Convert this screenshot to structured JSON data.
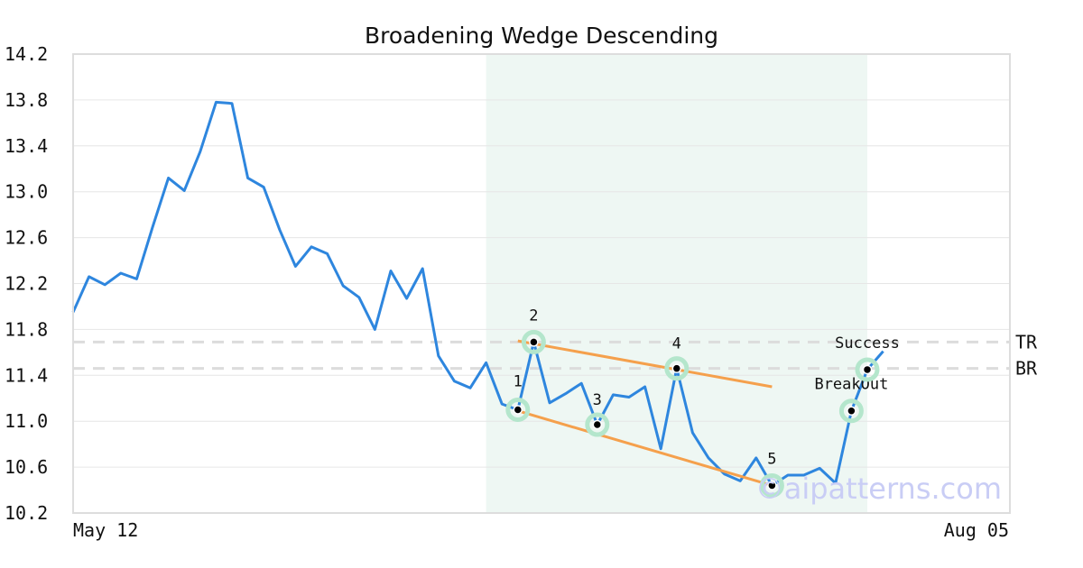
{
  "chart_data": {
    "type": "line",
    "title": "Broadening Wedge Descending",
    "xlabel": "",
    "ylabel": "",
    "x_start_label": "May 12",
    "x_end_label": "Aug 05",
    "ylim": [
      10.2,
      14.2
    ],
    "yticks": [
      "14.2",
      "13.8",
      "13.4",
      "13.0",
      "12.6",
      "12.2",
      "11.8",
      "11.4",
      "11.0",
      "10.6",
      "10.2"
    ],
    "grid": true,
    "series": [
      {
        "values": [
          11.95,
          12.26,
          12.19,
          12.29,
          12.24,
          12.69,
          13.12,
          13.01,
          13.35,
          13.78,
          13.77,
          13.12,
          13.04,
          12.67,
          12.35,
          12.52,
          12.46,
          12.18,
          12.08,
          11.8,
          12.31,
          12.07,
          12.33,
          11.57,
          11.35,
          11.29,
          11.51,
          11.15,
          11.1,
          11.69,
          11.16,
          11.24,
          11.33,
          10.97,
          11.23,
          11.21,
          11.3,
          10.76,
          11.46,
          10.9,
          10.68,
          10.54,
          10.48,
          10.68,
          10.44,
          10.53,
          10.53,
          10.59,
          10.46,
          11.09,
          11.45,
          11.61
        ]
      }
    ],
    "pattern_region": {
      "start_index": 26,
      "end_index": 50,
      "color": "#eef7f3"
    },
    "upper_trendline": {
      "start": [
        28,
        11.7
      ],
      "end": [
        44,
        11.3
      ],
      "color": "#f5a04c"
    },
    "lower_trendline": {
      "start": [
        28,
        11.09
      ],
      "end": [
        44,
        10.44
      ],
      "color": "#f5a04c"
    },
    "levels": [
      {
        "label": "TR",
        "value": 11.69
      },
      {
        "label": "BR",
        "value": 11.46
      }
    ],
    "points": [
      {
        "label": "1",
        "index": 28,
        "value": 11.1
      },
      {
        "label": "2",
        "index": 29,
        "value": 11.69
      },
      {
        "label": "3",
        "index": 33,
        "value": 10.97
      },
      {
        "label": "4",
        "index": 38,
        "value": 11.46
      },
      {
        "label": "5",
        "index": 44,
        "value": 10.44
      },
      {
        "label": "BreakOut",
        "index": 49,
        "value": 11.09
      },
      {
        "label": "Success",
        "index": 50,
        "value": 11.45
      }
    ],
    "line_color": "#2e86de",
    "watermark": "©aipatterns.com"
  }
}
